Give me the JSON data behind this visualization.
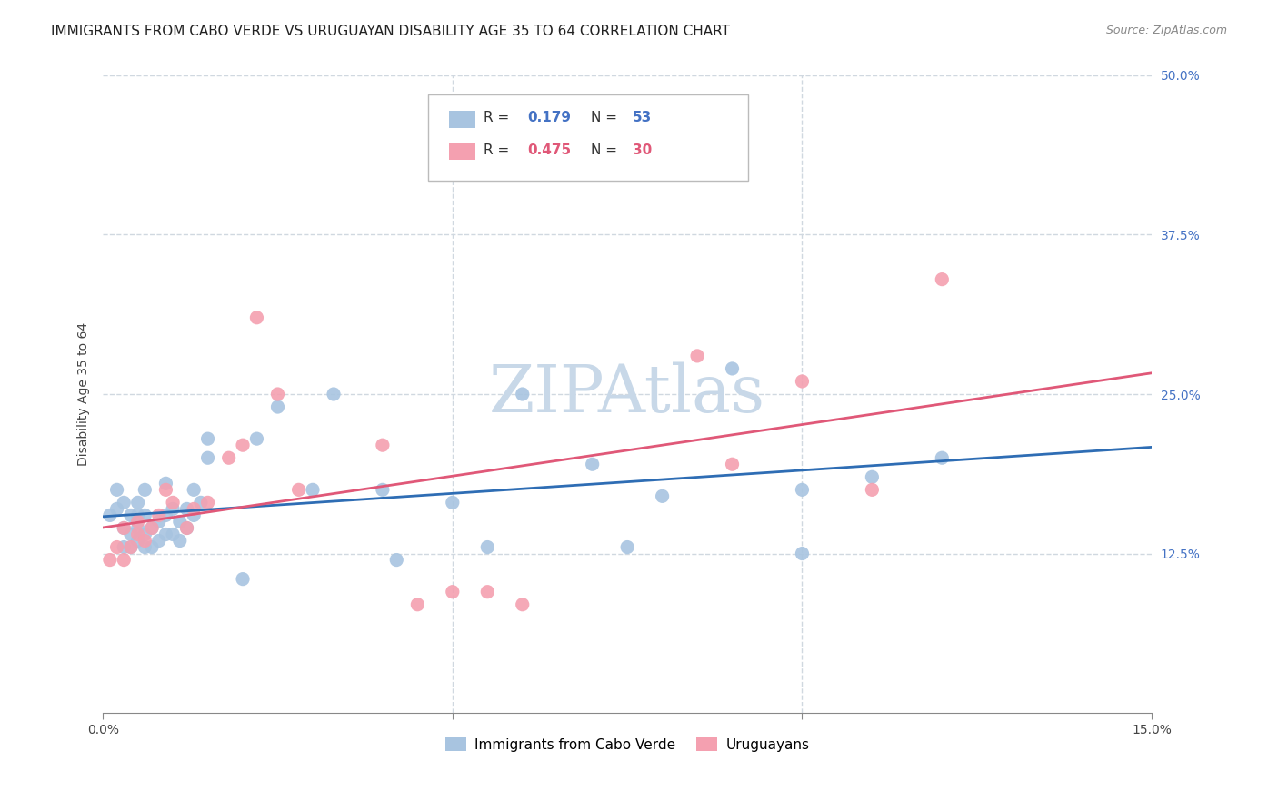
{
  "title": "IMMIGRANTS FROM CABO VERDE VS URUGUAYAN DISABILITY AGE 35 TO 64 CORRELATION CHART",
  "source": "Source: ZipAtlas.com",
  "ylabel": "Disability Age 35 to 64",
  "xlim": [
    0.0,
    0.15
  ],
  "ylim": [
    0.0,
    0.5
  ],
  "yticks_right": [
    0.125,
    0.25,
    0.375,
    0.5
  ],
  "ytick_labels_right": [
    "12.5%",
    "25.0%",
    "37.5%",
    "50.0%"
  ],
  "cabo_verde_R": 0.179,
  "cabo_verde_N": 53,
  "uruguayan_R": 0.475,
  "uruguayan_N": 30,
  "cabo_verde_color": "#a8c4e0",
  "uruguayan_color": "#f4a0b0",
  "cabo_verde_line_color": "#2e6db4",
  "uruguayan_line_color": "#e05878",
  "watermark_color": "#c8d8e8",
  "cabo_verde_x": [
    0.001,
    0.002,
    0.002,
    0.003,
    0.003,
    0.003,
    0.004,
    0.004,
    0.004,
    0.005,
    0.005,
    0.005,
    0.005,
    0.006,
    0.006,
    0.006,
    0.006,
    0.007,
    0.007,
    0.008,
    0.008,
    0.009,
    0.009,
    0.009,
    0.01,
    0.01,
    0.011,
    0.011,
    0.012,
    0.012,
    0.013,
    0.013,
    0.014,
    0.015,
    0.015,
    0.02,
    0.022,
    0.025,
    0.03,
    0.033,
    0.04,
    0.042,
    0.05,
    0.055,
    0.06,
    0.07,
    0.075,
    0.08,
    0.09,
    0.1,
    0.1,
    0.11,
    0.12
  ],
  "cabo_verde_y": [
    0.155,
    0.16,
    0.175,
    0.13,
    0.145,
    0.165,
    0.13,
    0.14,
    0.155,
    0.135,
    0.145,
    0.155,
    0.165,
    0.13,
    0.14,
    0.155,
    0.175,
    0.13,
    0.145,
    0.135,
    0.15,
    0.14,
    0.155,
    0.18,
    0.14,
    0.16,
    0.135,
    0.15,
    0.145,
    0.16,
    0.155,
    0.175,
    0.165,
    0.2,
    0.215,
    0.105,
    0.215,
    0.24,
    0.175,
    0.25,
    0.175,
    0.12,
    0.165,
    0.13,
    0.25,
    0.195,
    0.13,
    0.17,
    0.27,
    0.175,
    0.125,
    0.185,
    0.2
  ],
  "uruguayan_x": [
    0.001,
    0.002,
    0.003,
    0.003,
    0.004,
    0.005,
    0.005,
    0.006,
    0.007,
    0.008,
    0.009,
    0.01,
    0.012,
    0.013,
    0.015,
    0.018,
    0.02,
    0.022,
    0.025,
    0.028,
    0.04,
    0.045,
    0.05,
    0.055,
    0.06,
    0.085,
    0.09,
    0.1,
    0.11,
    0.12
  ],
  "uruguayan_y": [
    0.12,
    0.13,
    0.12,
    0.145,
    0.13,
    0.14,
    0.15,
    0.135,
    0.145,
    0.155,
    0.175,
    0.165,
    0.145,
    0.16,
    0.165,
    0.2,
    0.21,
    0.31,
    0.25,
    0.175,
    0.21,
    0.085,
    0.095,
    0.095,
    0.085,
    0.28,
    0.195,
    0.26,
    0.175,
    0.34
  ],
  "background_color": "#ffffff",
  "grid_color": "#d0d8e0",
  "title_fontsize": 11,
  "axis_label_fontsize": 10,
  "tick_fontsize": 10,
  "legend_fontsize": 11
}
